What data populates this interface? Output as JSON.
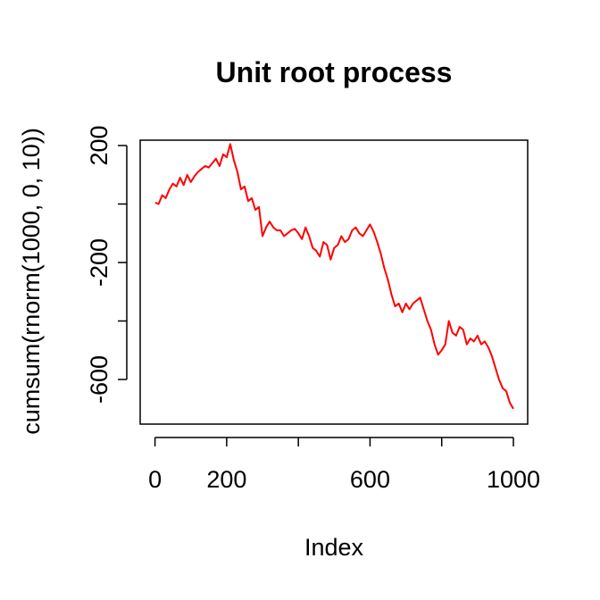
{
  "chart_data": {
    "type": "line",
    "title": "Unit root process",
    "xlabel": "Index",
    "ylabel": "cumsum(rnorm(1000, 0, 10))",
    "xlim": [
      1,
      1000
    ],
    "ylim": [
      -750,
      240
    ],
    "x_ticks": [
      0,
      200,
      400,
      600,
      800,
      1000
    ],
    "x_tick_labels": [
      "0",
      "200",
      "",
      "600",
      "",
      "1000"
    ],
    "y_ticks": [
      -600,
      -400,
      -200,
      0,
      200
    ],
    "y_tick_labels": [
      "-600",
      "",
      "-200",
      "",
      "200"
    ],
    "grid": false,
    "line_color": "#ff0000",
    "series": [
      {
        "x": [
          1,
          10,
          20,
          30,
          40,
          50,
          60,
          70,
          80,
          90,
          100,
          110,
          120,
          130,
          140,
          150,
          160,
          170,
          180,
          190,
          200,
          210,
          220,
          230,
          240,
          250,
          260,
          270,
          280,
          290,
          300,
          310,
          320,
          330,
          340,
          350,
          360,
          370,
          380,
          390,
          400,
          410,
          420,
          430,
          440,
          450,
          460,
          470,
          480,
          490,
          500,
          510,
          520,
          530,
          540,
          550,
          560,
          570,
          580,
          590,
          600,
          610,
          620,
          630,
          640,
          650,
          660,
          670,
          680,
          690,
          700,
          710,
          720,
          730,
          740,
          750,
          760,
          770,
          780,
          790,
          800,
          810,
          820,
          830,
          840,
          850,
          860,
          870,
          880,
          890,
          900,
          910,
          920,
          930,
          940,
          950,
          960,
          970,
          980,
          990,
          1000
        ],
        "values": [
          5,
          0,
          30,
          20,
          50,
          70,
          60,
          90,
          65,
          100,
          75,
          95,
          110,
          120,
          130,
          125,
          140,
          155,
          130,
          170,
          160,
          205,
          150,
          110,
          50,
          60,
          10,
          20,
          -20,
          -10,
          -110,
          -80,
          -60,
          -80,
          -90,
          -90,
          -110,
          -100,
          -90,
          -85,
          -100,
          -120,
          -80,
          -110,
          -150,
          -160,
          -180,
          -130,
          -140,
          -190,
          -150,
          -140,
          -110,
          -130,
          -120,
          -90,
          -80,
          -100,
          -110,
          -90,
          -70,
          -95,
          -130,
          -170,
          -220,
          -260,
          -310,
          -350,
          -340,
          -370,
          -340,
          -360,
          -340,
          -330,
          -320,
          -360,
          -400,
          -430,
          -480,
          -515,
          -500,
          -480,
          -400,
          -440,
          -450,
          -420,
          -430,
          -480,
          -460,
          -470,
          -450,
          -480,
          -470,
          -490,
          -520,
          -560,
          -600,
          -630,
          -640,
          -680,
          -700
        ]
      }
    ]
  }
}
